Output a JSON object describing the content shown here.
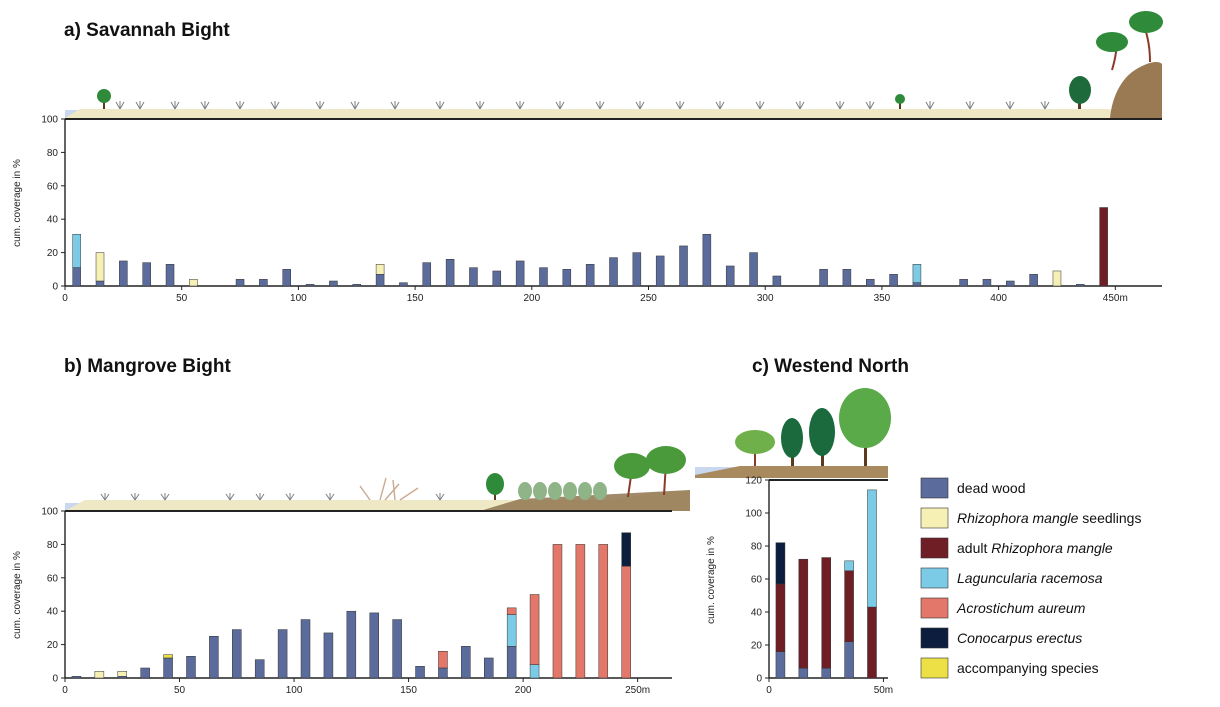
{
  "colors": {
    "dead_wood": "#5b6b9c",
    "rhizophora_seedlings": "#f6f0b4",
    "adult_rhizophora": "#6e1e24",
    "laguncularia": "#7ccbe6",
    "acrostichum": "#e2776a",
    "conocarpus": "#0c1d3e",
    "accompanying": "#ece046"
  },
  "legend": [
    {
      "key": "dead_wood",
      "pre": "dead wood",
      "italic": "",
      "post": ""
    },
    {
      "key": "rhizophora_seedlings",
      "pre": "",
      "italic": "Rhizophora mangle",
      "post": " seedlings"
    },
    {
      "key": "adult_rhizophora",
      "pre": "adult ",
      "italic": "Rhizophora mangle",
      "post": ""
    },
    {
      "key": "laguncularia",
      "pre": "",
      "italic": "Laguncularia racemosa",
      "post": ""
    },
    {
      "key": "acrostichum",
      "pre": "",
      "italic": "Acrostichum aureum",
      "post": ""
    },
    {
      "key": "conocarpus",
      "pre": "",
      "italic": "Conocarpus erectus",
      "post": ""
    },
    {
      "key": "accompanying",
      "pre": "accompanying species",
      "italic": "",
      "post": ""
    }
  ],
  "chart_data": [
    {
      "type": "bar",
      "stacked": true,
      "title": "a) Savannah Bight",
      "ylabel": "cum. coverage in %",
      "ylim": [
        0,
        100
      ],
      "yticks": [
        "0",
        "20",
        "40",
        "60",
        "80",
        "100"
      ],
      "xlim": [
        0,
        470
      ],
      "xticks": [
        "0",
        "50",
        "100",
        "150",
        "200",
        "250",
        "300",
        "350",
        "400",
        "450m"
      ],
      "xtick_values": [
        0,
        50,
        100,
        150,
        200,
        250,
        300,
        350,
        400,
        450
      ],
      "bars": [
        {
          "x": 5,
          "stack": [
            {
              "s": "dead_wood",
              "v": 11
            },
            {
              "s": "laguncularia",
              "v": 20
            }
          ]
        },
        {
          "x": 15,
          "stack": [
            {
              "s": "dead_wood",
              "v": 3
            },
            {
              "s": "rhizophora_seedlings",
              "v": 17
            }
          ]
        },
        {
          "x": 25,
          "stack": [
            {
              "s": "dead_wood",
              "v": 15
            }
          ]
        },
        {
          "x": 35,
          "stack": [
            {
              "s": "dead_wood",
              "v": 14
            }
          ]
        },
        {
          "x": 45,
          "stack": [
            {
              "s": "dead_wood",
              "v": 13
            }
          ]
        },
        {
          "x": 55,
          "stack": [
            {
              "s": "rhizophora_seedlings",
              "v": 4
            }
          ]
        },
        {
          "x": 75,
          "stack": [
            {
              "s": "dead_wood",
              "v": 4
            }
          ]
        },
        {
          "x": 85,
          "stack": [
            {
              "s": "dead_wood",
              "v": 4
            }
          ]
        },
        {
          "x": 95,
          "stack": [
            {
              "s": "dead_wood",
              "v": 10
            }
          ]
        },
        {
          "x": 105,
          "stack": [
            {
              "s": "dead_wood",
              "v": 1
            }
          ]
        },
        {
          "x": 115,
          "stack": [
            {
              "s": "dead_wood",
              "v": 3
            }
          ]
        },
        {
          "x": 125,
          "stack": [
            {
              "s": "dead_wood",
              "v": 1
            }
          ]
        },
        {
          "x": 135,
          "stack": [
            {
              "s": "dead_wood",
              "v": 7
            },
            {
              "s": "rhizophora_seedlings",
              "v": 6
            }
          ]
        },
        {
          "x": 145,
          "stack": [
            {
              "s": "dead_wood",
              "v": 2
            }
          ]
        },
        {
          "x": 155,
          "stack": [
            {
              "s": "dead_wood",
              "v": 14
            }
          ]
        },
        {
          "x": 165,
          "stack": [
            {
              "s": "dead_wood",
              "v": 16
            }
          ]
        },
        {
          "x": 175,
          "stack": [
            {
              "s": "dead_wood",
              "v": 11
            }
          ]
        },
        {
          "x": 185,
          "stack": [
            {
              "s": "dead_wood",
              "v": 9
            }
          ]
        },
        {
          "x": 195,
          "stack": [
            {
              "s": "dead_wood",
              "v": 15
            }
          ]
        },
        {
          "x": 205,
          "stack": [
            {
              "s": "dead_wood",
              "v": 11
            }
          ]
        },
        {
          "x": 215,
          "stack": [
            {
              "s": "dead_wood",
              "v": 10
            }
          ]
        },
        {
          "x": 225,
          "stack": [
            {
              "s": "dead_wood",
              "v": 13
            }
          ]
        },
        {
          "x": 235,
          "stack": [
            {
              "s": "dead_wood",
              "v": 17
            }
          ]
        },
        {
          "x": 245,
          "stack": [
            {
              "s": "dead_wood",
              "v": 20
            }
          ]
        },
        {
          "x": 255,
          "stack": [
            {
              "s": "dead_wood",
              "v": 18
            }
          ]
        },
        {
          "x": 265,
          "stack": [
            {
              "s": "dead_wood",
              "v": 24
            }
          ]
        },
        {
          "x": 275,
          "stack": [
            {
              "s": "dead_wood",
              "v": 31
            }
          ]
        },
        {
          "x": 285,
          "stack": [
            {
              "s": "dead_wood",
              "v": 12
            }
          ]
        },
        {
          "x": 295,
          "stack": [
            {
              "s": "dead_wood",
              "v": 20
            }
          ]
        },
        {
          "x": 305,
          "stack": [
            {
              "s": "dead_wood",
              "v": 6
            }
          ]
        },
        {
          "x": 325,
          "stack": [
            {
              "s": "dead_wood",
              "v": 10
            }
          ]
        },
        {
          "x": 335,
          "stack": [
            {
              "s": "dead_wood",
              "v": 10
            }
          ]
        },
        {
          "x": 345,
          "stack": [
            {
              "s": "dead_wood",
              "v": 4
            }
          ]
        },
        {
          "x": 355,
          "stack": [
            {
              "s": "dead_wood",
              "v": 7
            }
          ]
        },
        {
          "x": 365,
          "stack": [
            {
              "s": "dead_wood",
              "v": 2
            },
            {
              "s": "laguncularia",
              "v": 11
            }
          ]
        },
        {
          "x": 385,
          "stack": [
            {
              "s": "dead_wood",
              "v": 4
            }
          ]
        },
        {
          "x": 395,
          "stack": [
            {
              "s": "dead_wood",
              "v": 4
            }
          ]
        },
        {
          "x": 405,
          "stack": [
            {
              "s": "dead_wood",
              "v": 3
            }
          ]
        },
        {
          "x": 415,
          "stack": [
            {
              "s": "dead_wood",
              "v": 7
            }
          ]
        },
        {
          "x": 425,
          "stack": [
            {
              "s": "rhizophora_seedlings",
              "v": 9
            }
          ]
        },
        {
          "x": 435,
          "stack": [
            {
              "s": "dead_wood",
              "v": 1
            }
          ]
        },
        {
          "x": 445,
          "stack": [
            {
              "s": "adult_rhizophora",
              "v": 47
            }
          ]
        }
      ]
    },
    {
      "type": "bar",
      "stacked": true,
      "title": "b) Mangrove Bight",
      "ylabel": "cum. coverage in %",
      "ylim": [
        0,
        100
      ],
      "yticks": [
        "0",
        "20",
        "40",
        "60",
        "80",
        "100"
      ],
      "xlim": [
        0,
        265
      ],
      "xticks": [
        "0",
        "50",
        "100",
        "150",
        "200",
        "250m"
      ],
      "xtick_values": [
        0,
        50,
        100,
        150,
        200,
        250
      ],
      "bars": [
        {
          "x": 5,
          "stack": [
            {
              "s": "dead_wood",
              "v": 1
            }
          ]
        },
        {
          "x": 15,
          "stack": [
            {
              "s": "rhizophora_seedlings",
              "v": 4
            }
          ]
        },
        {
          "x": 25,
          "stack": [
            {
              "s": "dead_wood",
              "v": 1
            },
            {
              "s": "rhizophora_seedlings",
              "v": 3
            }
          ]
        },
        {
          "x": 35,
          "stack": [
            {
              "s": "dead_wood",
              "v": 6
            }
          ]
        },
        {
          "x": 45,
          "stack": [
            {
              "s": "dead_wood",
              "v": 12
            },
            {
              "s": "accompanying",
              "v": 2
            }
          ]
        },
        {
          "x": 55,
          "stack": [
            {
              "s": "dead_wood",
              "v": 13
            }
          ]
        },
        {
          "x": 65,
          "stack": [
            {
              "s": "dead_wood",
              "v": 25
            }
          ]
        },
        {
          "x": 75,
          "stack": [
            {
              "s": "dead_wood",
              "v": 29
            }
          ]
        },
        {
          "x": 85,
          "stack": [
            {
              "s": "dead_wood",
              "v": 11
            }
          ]
        },
        {
          "x": 95,
          "stack": [
            {
              "s": "dead_wood",
              "v": 29
            }
          ]
        },
        {
          "x": 105,
          "stack": [
            {
              "s": "dead_wood",
              "v": 35
            }
          ]
        },
        {
          "x": 115,
          "stack": [
            {
              "s": "dead_wood",
              "v": 27
            }
          ]
        },
        {
          "x": 125,
          "stack": [
            {
              "s": "dead_wood",
              "v": 40
            }
          ]
        },
        {
          "x": 135,
          "stack": [
            {
              "s": "dead_wood",
              "v": 39
            }
          ]
        },
        {
          "x": 145,
          "stack": [
            {
              "s": "dead_wood",
              "v": 35
            }
          ]
        },
        {
          "x": 155,
          "stack": [
            {
              "s": "dead_wood",
              "v": 7
            }
          ]
        },
        {
          "x": 165,
          "stack": [
            {
              "s": "dead_wood",
              "v": 6
            },
            {
              "s": "acrostichum",
              "v": 10
            }
          ]
        },
        {
          "x": 175,
          "stack": [
            {
              "s": "dead_wood",
              "v": 19
            }
          ]
        },
        {
          "x": 185,
          "stack": [
            {
              "s": "dead_wood",
              "v": 12
            }
          ]
        },
        {
          "x": 195,
          "stack": [
            {
              "s": "dead_wood",
              "v": 19
            },
            {
              "s": "laguncularia",
              "v": 19
            },
            {
              "s": "acrostichum",
              "v": 4
            }
          ]
        },
        {
          "x": 205,
          "stack": [
            {
              "s": "laguncularia",
              "v": 8
            },
            {
              "s": "acrostichum",
              "v": 42
            }
          ]
        },
        {
          "x": 215,
          "stack": [
            {
              "s": "acrostichum",
              "v": 80
            }
          ]
        },
        {
          "x": 225,
          "stack": [
            {
              "s": "acrostichum",
              "v": 80
            }
          ]
        },
        {
          "x": 235,
          "stack": [
            {
              "s": "acrostichum",
              "v": 80
            }
          ]
        },
        {
          "x": 245,
          "stack": [
            {
              "s": "acrostichum",
              "v": 67
            },
            {
              "s": "conocarpus",
              "v": 20
            }
          ]
        }
      ]
    },
    {
      "type": "bar",
      "stacked": true,
      "title": "c) Westend North",
      "ylabel": "cum. coverage in %",
      "ylim": [
        0,
        120
      ],
      "yticks": [
        "0",
        "20",
        "40",
        "60",
        "80",
        "100",
        "120"
      ],
      "xlim": [
        0,
        52
      ],
      "xticks": [
        "0",
        "50m"
      ],
      "xtick_values": [
        0,
        50
      ],
      "bars": [
        {
          "x": 5,
          "stack": [
            {
              "s": "dead_wood",
              "v": 16
            },
            {
              "s": "adult_rhizophora",
              "v": 41
            },
            {
              "s": "conocarpus",
              "v": 25
            }
          ]
        },
        {
          "x": 15,
          "stack": [
            {
              "s": "dead_wood",
              "v": 6
            },
            {
              "s": "adult_rhizophora",
              "v": 66
            }
          ]
        },
        {
          "x": 25,
          "stack": [
            {
              "s": "dead_wood",
              "v": 6
            },
            {
              "s": "adult_rhizophora",
              "v": 67
            }
          ]
        },
        {
          "x": 35,
          "stack": [
            {
              "s": "dead_wood",
              "v": 22
            },
            {
              "s": "adult_rhizophora",
              "v": 43
            },
            {
              "s": "laguncularia",
              "v": 6
            }
          ]
        },
        {
          "x": 45,
          "stack": [
            {
              "s": "adult_rhizophora",
              "v": 43
            },
            {
              "s": "laguncularia",
              "v": 71
            }
          ]
        }
      ]
    }
  ]
}
